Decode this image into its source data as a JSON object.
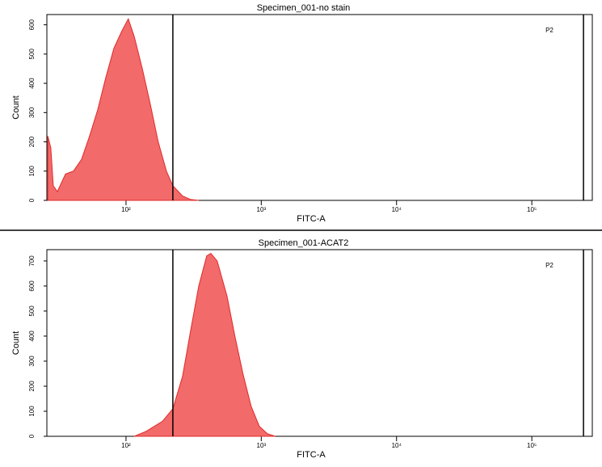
{
  "chart_data": [
    {
      "type": "area",
      "title": "Specimen_001-no stain",
      "xlabel": "FITC-A",
      "ylabel": "Count",
      "xscale": "log",
      "color": "#f26a6a",
      "line_color": "#e02a2a",
      "x": [
        26.4,
        27.8,
        29.0,
        31.1,
        35.7,
        40.9,
        46.9,
        53.8,
        61.8,
        70.9,
        81.4,
        93.4,
        104,
        115,
        132,
        151,
        173,
        199,
        222,
        262,
        300,
        345
      ],
      "values": [
        220,
        180,
        50,
        30,
        90,
        100,
        140,
        220,
        310,
        420,
        520,
        580,
        620,
        560,
        450,
        330,
        200,
        100,
        50,
        15,
        3,
        0
      ],
      "xlim": [
        26,
        280000
      ],
      "ylim": [
        0,
        635
      ],
      "xticks": [
        {
          "value": 100,
          "label": "10²"
        },
        {
          "value": 1000,
          "label": "10³"
        },
        {
          "value": 10000,
          "label": "10⁴"
        },
        {
          "value": 100000,
          "label": "10⁵"
        }
      ],
      "yticks": [
        0,
        100,
        200,
        300,
        400,
        500,
        600
      ],
      "gate": {
        "label": "P2",
        "xlim": [
          222,
          241000
        ]
      }
    },
    {
      "type": "area",
      "title": "Specimen_001-ACAT2",
      "xlabel": "FITC-A",
      "ylabel": "Count",
      "xscale": "log",
      "color": "#f26a6a",
      "line_color": "#e02a2a",
      "x": [
        115,
        141,
        186,
        222,
        262,
        300,
        345,
        395,
        424,
        472,
        558,
        638,
        732,
        841,
        967,
        1110,
        1271
      ],
      "values": [
        0,
        20,
        60,
        110,
        240,
        420,
        600,
        720,
        730,
        700,
        560,
        400,
        250,
        120,
        40,
        10,
        0
      ],
      "xlim": [
        26,
        280000
      ],
      "ylim": [
        0,
        745
      ],
      "xticks": [
        {
          "value": 100,
          "label": "10²"
        },
        {
          "value": 1000,
          "label": "10³"
        },
        {
          "value": 10000,
          "label": "10⁴"
        },
        {
          "value": 100000,
          "label": "10⁵"
        }
      ],
      "yticks": [
        0,
        100,
        200,
        300,
        400,
        500,
        600,
        700
      ],
      "gate": {
        "label": "P2",
        "xlim": [
          222,
          241000
        ]
      }
    }
  ]
}
